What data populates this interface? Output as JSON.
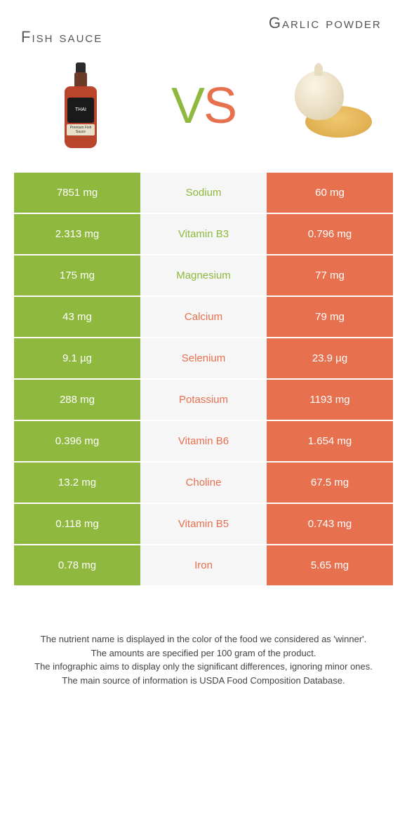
{
  "foods": {
    "left": {
      "title": "Fish sauce",
      "color": "#8fb93e"
    },
    "right": {
      "title": "Garlic powder",
      "color": "#e7704f"
    }
  },
  "vs": "VS",
  "rows": [
    {
      "nutrient": "Sodium",
      "left": "7851 mg",
      "right": "60 mg",
      "winner": "left"
    },
    {
      "nutrient": "Vitamin B3",
      "left": "2.313 mg",
      "right": "0.796 mg",
      "winner": "left"
    },
    {
      "nutrient": "Magnesium",
      "left": "175 mg",
      "right": "77 mg",
      "winner": "left"
    },
    {
      "nutrient": "Calcium",
      "left": "43 mg",
      "right": "79 mg",
      "winner": "right"
    },
    {
      "nutrient": "Selenium",
      "left": "9.1 µg",
      "right": "23.9 µg",
      "winner": "right"
    },
    {
      "nutrient": "Potassium",
      "left": "288 mg",
      "right": "1193 mg",
      "winner": "right"
    },
    {
      "nutrient": "Vitamin B6",
      "left": "0.396 mg",
      "right": "1.654 mg",
      "winner": "right"
    },
    {
      "nutrient": "Choline",
      "left": "13.2 mg",
      "right": "67.5 mg",
      "winner": "right"
    },
    {
      "nutrient": "Vitamin B5",
      "left": "0.118 mg",
      "right": "0.743 mg",
      "winner": "right"
    },
    {
      "nutrient": "Iron",
      "left": "0.78 mg",
      "right": "5.65 mg",
      "winner": "right"
    }
  ],
  "footer": {
    "l1": "The nutrient name is displayed in the color of the food we considered as 'winner'.",
    "l2": "The amounts are specified per 100 gram of the product.",
    "l3": "The infographic aims to display only the significant differences, ignoring minor ones.",
    "l4": "The main source of information is USDA Food Composition Database."
  }
}
